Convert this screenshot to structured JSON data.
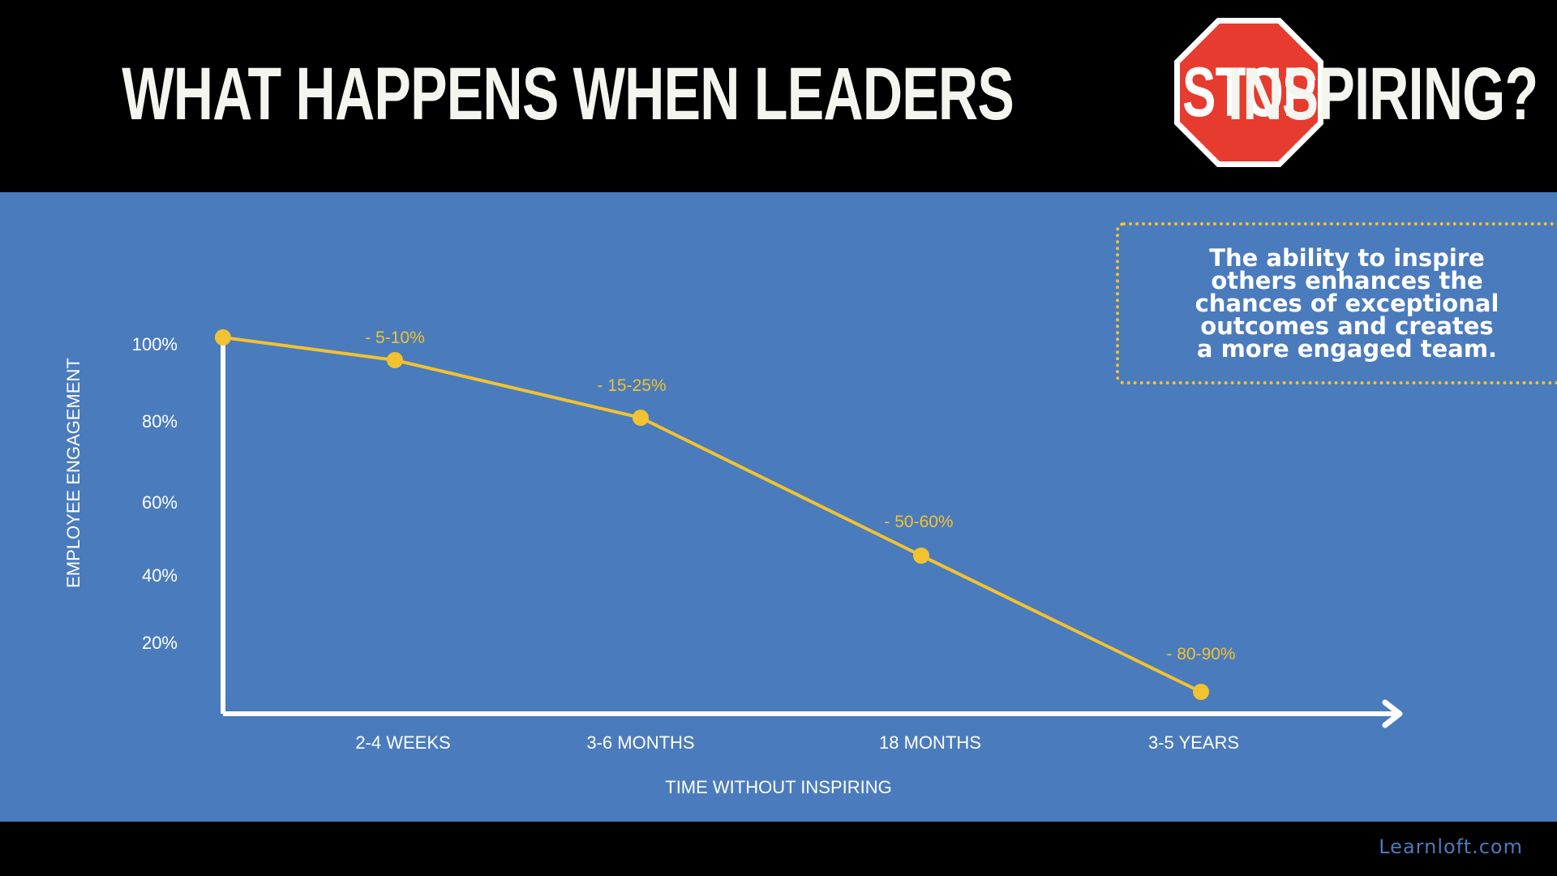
{
  "header": {
    "title_before": "WHAT HAPPENS WHEN LEADERS",
    "title_stop": "STOP",
    "title_after": "INSPIRING?"
  },
  "callout": {
    "text": "The ability to inspire others enhances the chances of exceptional outcomes and creates a more engaged team."
  },
  "footer": {
    "brand": "Learnloft.com"
  },
  "colors": {
    "background": "#4a7bbd",
    "line": "#f2c230",
    "axis": "#ffffff",
    "stop_sign": "#e63b2e"
  },
  "chart_data": {
    "type": "line",
    "xlabel": "TIME WITHOUT INSPIRING",
    "ylabel": "EMPLOYEE ENGAGEMENT",
    "y_tick_labels": [
      "20%",
      "40%",
      "60%",
      "80%",
      "100%"
    ],
    "y_ticks": [
      20,
      40,
      60,
      80,
      100
    ],
    "categories": [
      "",
      "2-4 WEEKS",
      "3-6 MONTHS",
      "18 MONTHS",
      "3-5 YEARS"
    ],
    "values": [
      100,
      93,
      78,
      45,
      11
    ],
    "point_labels": [
      "",
      "- 5-10%",
      "- 15-25%",
      "- 50-60%",
      "- 80-90%"
    ],
    "ylim": [
      0,
      100
    ],
    "grid": false,
    "legend": "none"
  }
}
